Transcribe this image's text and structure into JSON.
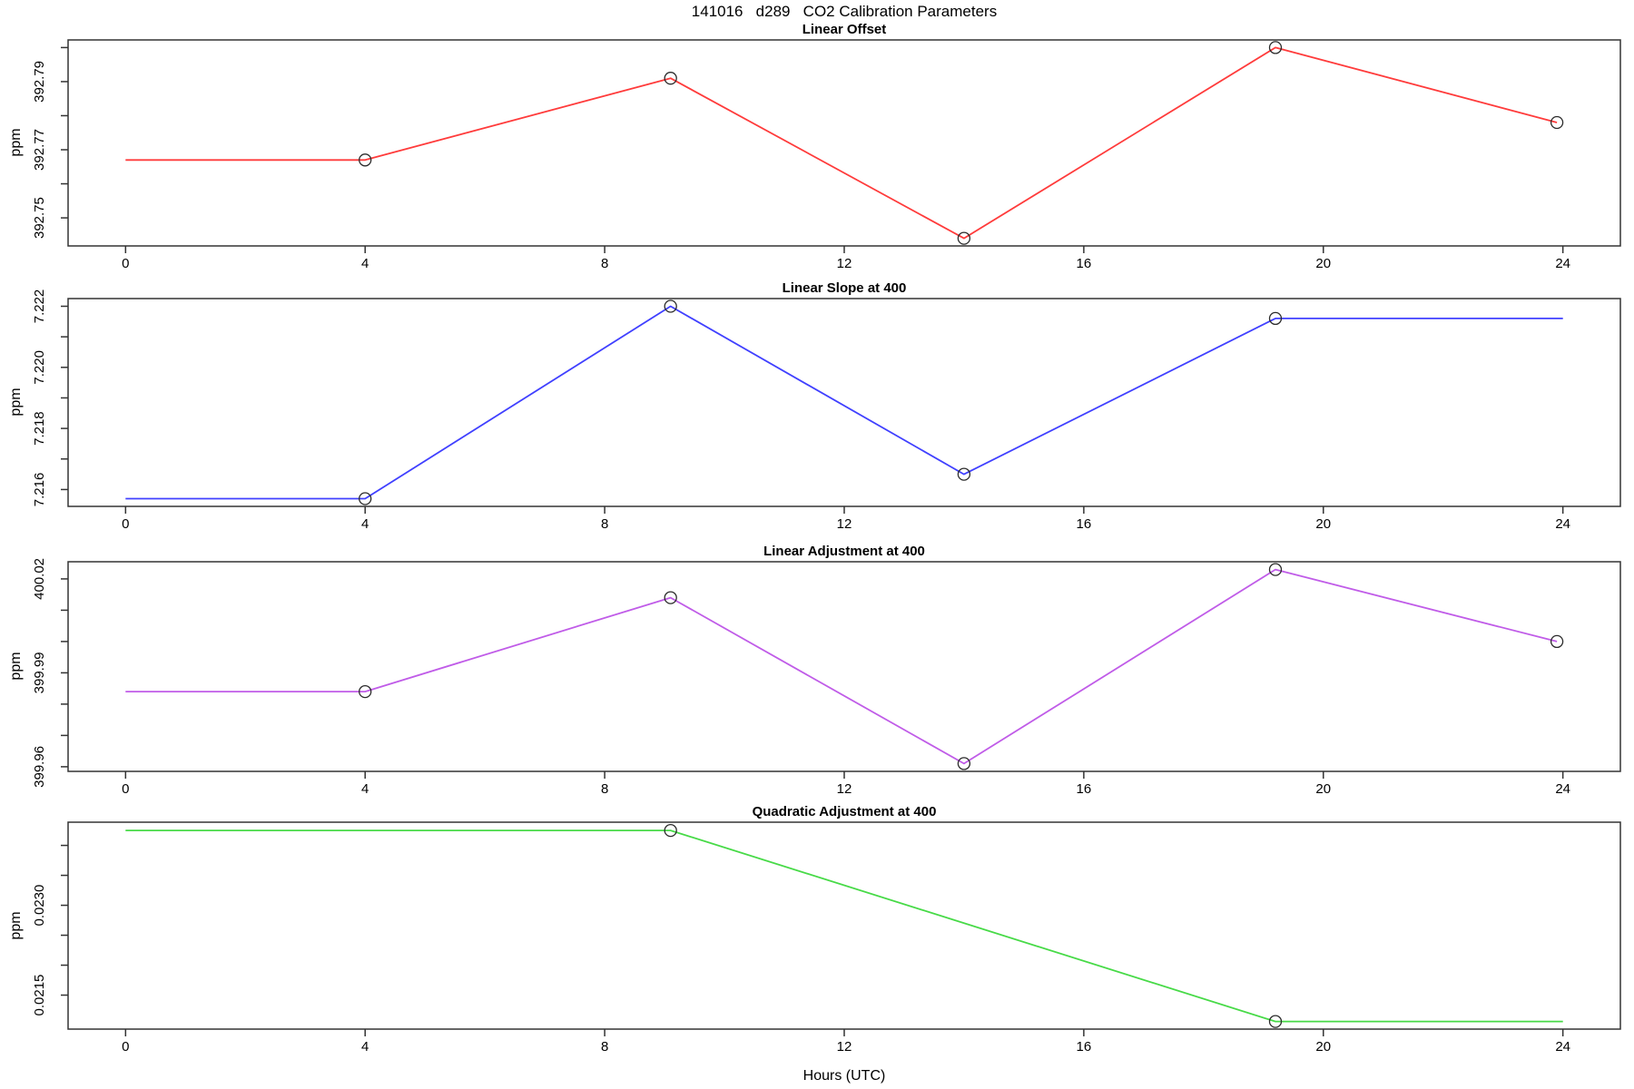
{
  "title": "141016   d289   CO2 Calibration Parameters",
  "xlabel": "Hours (UTC)",
  "chart_data": [
    {
      "type": "line",
      "title": "Linear Offset",
      "ylabel": "ppm",
      "color": "#ff3b3b",
      "x": [
        0,
        4.0,
        9.1,
        14.0,
        19.2,
        23.9
      ],
      "y": [
        392.767,
        392.767,
        392.791,
        392.744,
        392.8,
        392.778
      ],
      "markers": [
        1,
        2,
        3,
        4,
        5
      ],
      "xlim": [
        -0.96,
        24.96
      ],
      "ylim": [
        392.74176,
        392.80224
      ],
      "xticks": [
        0,
        4,
        8,
        12,
        16,
        20,
        24
      ],
      "yticks": [
        {
          "v": 392.75,
          "l": "392.75"
        },
        {
          "v": 392.76
        },
        {
          "v": 392.77,
          "l": "392.77"
        },
        {
          "v": 392.78
        },
        {
          "v": 392.79,
          "l": "392.79"
        },
        {
          "v": 392.8
        }
      ],
      "grid": false,
      "legend": null
    },
    {
      "type": "line",
      "title": "Linear Slope at 400",
      "ylabel": "ppm",
      "color": "#4040ff",
      "x": [
        0,
        4.0,
        9.1,
        14.0,
        19.2,
        24
      ],
      "y": [
        7.2157,
        7.2157,
        7.222,
        7.2165,
        7.2216,
        7.2216
      ],
      "markers": [
        1,
        2,
        3,
        4
      ],
      "xlim": [
        -0.96,
        24.96
      ],
      "ylim": [
        7.215448,
        7.222252
      ],
      "xticks": [
        0,
        4,
        8,
        12,
        16,
        20,
        24
      ],
      "yticks": [
        {
          "v": 7.216,
          "l": "7.216"
        },
        {
          "v": 7.217
        },
        {
          "v": 7.218,
          "l": "7.218"
        },
        {
          "v": 7.219
        },
        {
          "v": 7.22,
          "l": "7.220"
        },
        {
          "v": 7.221
        },
        {
          "v": 7.222,
          "l": "7.222"
        }
      ],
      "grid": false,
      "legend": null
    },
    {
      "type": "line",
      "title": "Linear Adjustment at 400",
      "ylabel": "ppm",
      "color": "#c05ce8",
      "x": [
        0,
        4.0,
        9.1,
        14.0,
        19.2,
        23.9
      ],
      "y": [
        399.984,
        399.984,
        400.014,
        399.961,
        400.023,
        400.0
      ],
      "markers": [
        1,
        2,
        3,
        4,
        5
      ],
      "xlim": [
        -0.96,
        24.96
      ],
      "ylim": [
        399.95852,
        400.02548
      ],
      "xticks": [
        0,
        4,
        8,
        12,
        16,
        20,
        24
      ],
      "yticks": [
        {
          "v": 399.96,
          "l": "399.96"
        },
        {
          "v": 399.97
        },
        {
          "v": 399.98
        },
        {
          "v": 399.99,
          "l": "399.99"
        },
        {
          "v": 400.0
        },
        {
          "v": 400.01
        },
        {
          "v": 400.02,
          "l": "400.02"
        }
      ],
      "grid": false,
      "legend": null
    },
    {
      "type": "line",
      "title": "Quadratic Adjustment at 400",
      "ylabel": "ppm",
      "color": "#47da47",
      "x": [
        0,
        9.1,
        19.2,
        24
      ],
      "y": [
        0.02425,
        0.02425,
        0.02106,
        0.02106
      ],
      "markers": [
        1,
        2
      ],
      "xlim": [
        -0.96,
        24.96
      ],
      "ylim": [
        0.0209324,
        0.0243876
      ],
      "xticks": [
        0,
        4,
        8,
        12,
        16,
        20,
        24
      ],
      "yticks": [
        {
          "v": 0.0215,
          "l": "0.0215"
        },
        {
          "v": 0.022
        },
        {
          "v": 0.0225
        },
        {
          "v": 0.023,
          "l": "0.0230"
        },
        {
          "v": 0.0235
        },
        {
          "v": 0.024
        }
      ],
      "grid": false,
      "legend": null
    }
  ]
}
